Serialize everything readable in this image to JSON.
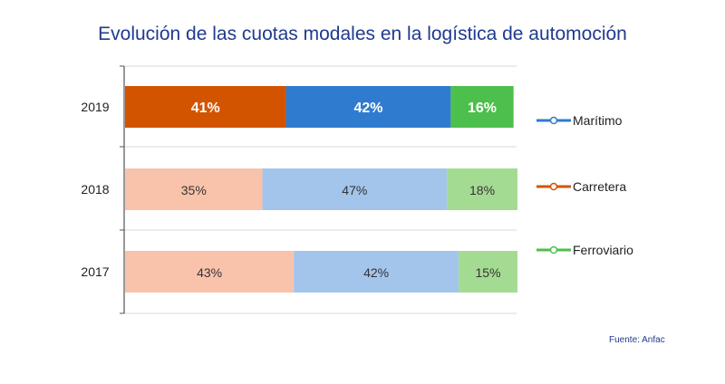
{
  "title": "Evolución de las cuotas modales en la logística de automoción",
  "source": "Fuente: Anfac",
  "colors": {
    "title": "#1f3a8f",
    "carretera": "#d35400",
    "maritimo": "#2f7bd0",
    "ferroviario": "#4cbf4c",
    "carretera_light": "#f8c3aa",
    "maritimo_light": "#a3c5ec",
    "ferroviario_light": "#a4db93",
    "grid": "#d9d9d9"
  },
  "chart_data": {
    "type": "bar",
    "orientation": "horizontal",
    "stacked": true,
    "categories": [
      "2019",
      "2018",
      "2017"
    ],
    "series": [
      {
        "name": "Carretera",
        "values": [
          41,
          35,
          43
        ],
        "labels": [
          "41%",
          "35%",
          "43%"
        ]
      },
      {
        "name": "Marítimo",
        "values": [
          42,
          47,
          42
        ],
        "labels": [
          "42%",
          "47%",
          "42%"
        ]
      },
      {
        "name": "Ferroviario",
        "values": [
          16,
          18,
          15
        ],
        "labels": [
          "16%",
          "18%",
          "15%"
        ]
      }
    ],
    "legend": [
      "Marítimo",
      "Carretera",
      "Ferroviario"
    ],
    "legend_position": "right",
    "grid": true
  }
}
